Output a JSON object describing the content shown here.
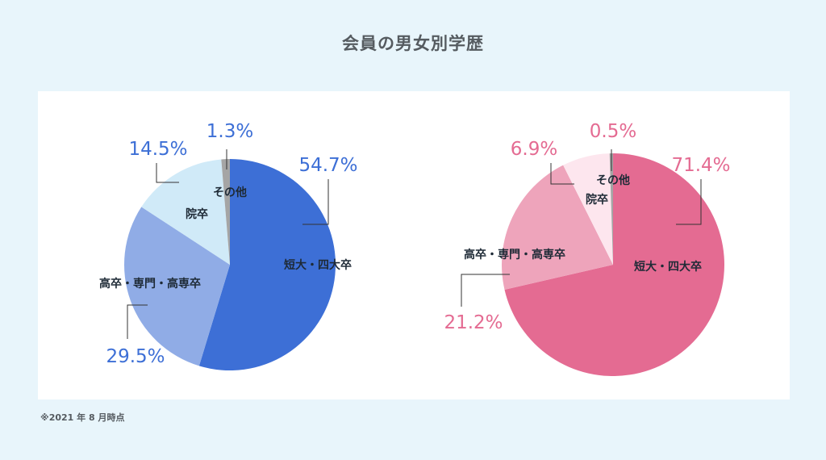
{
  "title": "会員の男女別学歴",
  "note": "※2021 年 8 月時点",
  "chart_data": [
    {
      "type": "pie",
      "categories": [
        "短大・四大卒",
        "高卒・専門・高専卒",
        "院卒",
        "その他"
      ],
      "values": [
        54.7,
        29.5,
        14.5,
        1.3
      ],
      "value_labels": [
        "54.7%",
        "29.5%",
        "14.5%",
        "1.3%"
      ],
      "colors": [
        "#3d6fd6",
        "#90ace6",
        "#d0eaf8",
        "#a5a5a5"
      ],
      "label_color": "#3d6fd6"
    },
    {
      "type": "pie",
      "categories": [
        "短大・四大卒",
        "高卒・専門・高専卒",
        "院卒",
        "その他"
      ],
      "values": [
        71.4,
        21.2,
        6.9,
        0.5
      ],
      "value_labels": [
        "71.4%",
        "21.2%",
        "6.9%",
        "0.5%"
      ],
      "colors": [
        "#e46b92",
        "#eea4bb",
        "#fde6ee",
        "#a5a5a5"
      ],
      "label_color": "#e46b92"
    }
  ]
}
